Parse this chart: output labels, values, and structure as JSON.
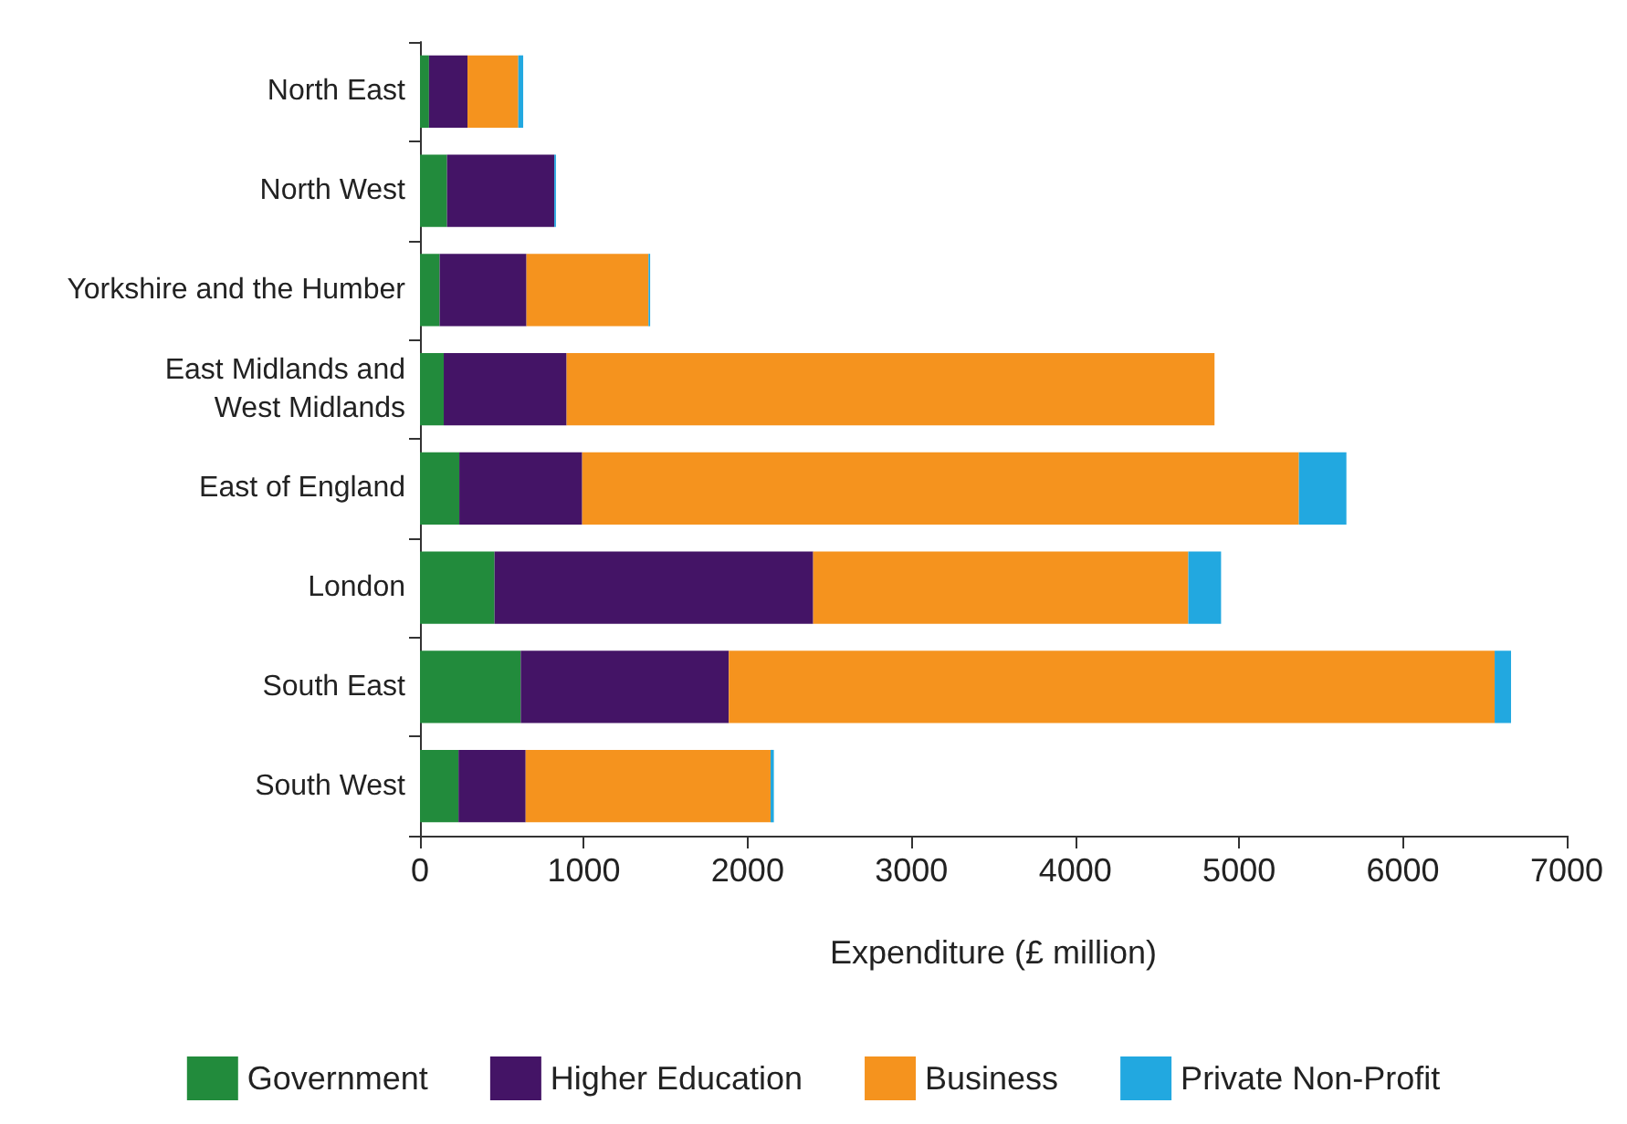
{
  "chart_data": {
    "type": "bar",
    "orientation": "horizontal",
    "stacked": true,
    "xlabel": "Expenditure (£ million)",
    "categories": [
      "North East",
      "North West",
      "Yorkshire and the Humber",
      "East Midlands and\nWest Midlands",
      "East of England",
      "London",
      "South East",
      "South West"
    ],
    "series": [
      {
        "name": "Government",
        "color": "#228b3c",
        "values": [
          55,
          165,
          120,
          145,
          240,
          455,
          615,
          235
        ]
      },
      {
        "name": "Higher Education",
        "color": "#441466",
        "values": [
          235,
          655,
          530,
          750,
          750,
          1945,
          1270,
          410
        ]
      },
      {
        "name": "Business",
        "color": "#f5931e",
        "values": [
          310,
          0,
          745,
          3955,
          4375,
          2290,
          4675,
          1495
        ]
      },
      {
        "name": "Private Non-Profit",
        "color": "#22a8e0",
        "values": [
          30,
          10,
          10,
          0,
          290,
          200,
          100,
          20
        ]
      }
    ],
    "xlim": [
      0,
      7000
    ],
    "xticks": [
      0,
      1000,
      2000,
      3000,
      4000,
      5000,
      6000,
      7000
    ],
    "grid": false,
    "legend": "bottom"
  }
}
